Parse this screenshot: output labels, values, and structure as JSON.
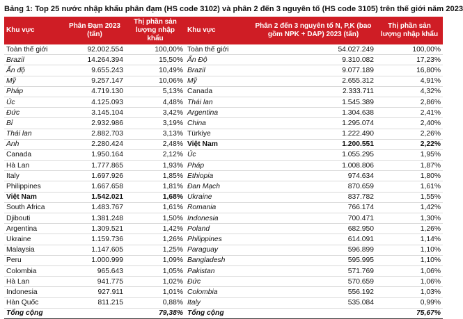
{
  "title": "Bảng 1: Top 25 nước nhập khẩu phân đạm (HS code 3102) và phân 2 đến 3 nguyên tố (HS code 3105) trên thế giới năm 2023",
  "headers": {
    "region1": "Khu vực",
    "val1": "Phân Đạm 2023 (tấn)",
    "share1": "Thị phần sản lượng nhập khẩu",
    "region2": "Khu vực",
    "val2": "Phân 2 đến 3 nguyên tố N, P,K (bao gồm NPK + DAP) 2023 (tấn)",
    "share2": "Thị phần sản lượng nhập khẩu"
  },
  "rows": [
    {
      "r1": "Toàn thế giới",
      "v1": "92.002.554",
      "s1": "100,00%",
      "r2": "Toàn thế giới",
      "v2": "54.027.249",
      "s2": "100,00%",
      "i1": false,
      "i2": false,
      "b1": false,
      "b2": false
    },
    {
      "r1": "Brazil",
      "v1": "14.264.394",
      "s1": "15,50%",
      "r2": "Ấn Độ",
      "v2": "9.310.082",
      "s2": "17,23%",
      "i1": true,
      "i2": true,
      "b1": false,
      "b2": false
    },
    {
      "r1": "Ấn độ",
      "v1": "9.655.243",
      "s1": "10,49%",
      "r2": "Brazil",
      "v2": "9.077.189",
      "s2": "16,80%",
      "i1": true,
      "i2": true,
      "b1": false,
      "b2": false
    },
    {
      "r1": "Mỹ",
      "v1": "9.257.147",
      "s1": "10,06%",
      "r2": "Mỹ",
      "v2": "2.655.312",
      "s2": "4,91%",
      "i1": true,
      "i2": true,
      "b1": false,
      "b2": false
    },
    {
      "r1": "Pháp",
      "v1": "4.719.130",
      "s1": "5,13%",
      "r2": "Canada",
      "v2": "2.333.711",
      "s2": "4,32%",
      "i1": true,
      "i2": false,
      "b1": false,
      "b2": false
    },
    {
      "r1": "Úc",
      "v1": "4.125.093",
      "s1": "4,48%",
      "r2": "Thái lan",
      "v2": "1.545.389",
      "s2": "2,86%",
      "i1": true,
      "i2": true,
      "b1": false,
      "b2": false
    },
    {
      "r1": "Đức",
      "v1": "3.145.104",
      "s1": "3,42%",
      "r2": "Argentina",
      "v2": "1.304.638",
      "s2": "2,41%",
      "i1": true,
      "i2": true,
      "b1": false,
      "b2": false
    },
    {
      "r1": "Bỉ",
      "v1": "2.932.986",
      "s1": "3,19%",
      "r2": "China",
      "v2": "1.295.074",
      "s2": "2,40%",
      "i1": true,
      "i2": true,
      "b1": false,
      "b2": false
    },
    {
      "r1": "Thái lan",
      "v1": "2.882.703",
      "s1": "3,13%",
      "r2": "Türkiye",
      "v2": "1.222.490",
      "s2": "2,26%",
      "i1": true,
      "i2": false,
      "b1": false,
      "b2": false
    },
    {
      "r1": "Anh",
      "v1": "2.280.424",
      "s1": "2,48%",
      "r2": "Việt Nam",
      "v2": "1.200.551",
      "s2": "2,22%",
      "i1": true,
      "i2": false,
      "b1": false,
      "b2": true
    },
    {
      "r1": "Canada",
      "v1": "1.950.164",
      "s1": "2,12%",
      "r2": "Úc",
      "v2": "1.055.295",
      "s2": "1,95%",
      "i1": false,
      "i2": true,
      "b1": false,
      "b2": false
    },
    {
      "r1": "Hà Lan",
      "v1": "1.777.865",
      "s1": "1,93%",
      "r2": "Pháp",
      "v2": "1.008.806",
      "s2": "1,87%",
      "i1": false,
      "i2": true,
      "b1": false,
      "b2": false
    },
    {
      "r1": "Italy",
      "v1": "1.697.926",
      "s1": "1,85%",
      "r2": "Ethiopia",
      "v2": "974.634",
      "s2": "1,80%",
      "i1": false,
      "i2": true,
      "b1": false,
      "b2": false
    },
    {
      "r1": "Philippines",
      "v1": "1.667.658",
      "s1": "1,81%",
      "r2": "Đan Mạch",
      "v2": "870.659",
      "s2": "1,61%",
      "i1": false,
      "i2": true,
      "b1": false,
      "b2": false
    },
    {
      "r1": "Việt Nam",
      "v1": "1.542.021",
      "s1": "1,68%",
      "r2": "Ukraine",
      "v2": "837.782",
      "s2": "1,55%",
      "i1": false,
      "i2": true,
      "b1": true,
      "b2": false
    },
    {
      "r1": "South Africa",
      "v1": "1.483.767",
      "s1": "1,61%",
      "r2": "Romania",
      "v2": "766.174",
      "s2": "1,42%",
      "i1": false,
      "i2": true,
      "b1": false,
      "b2": false
    },
    {
      "r1": "Djibouti",
      "v1": "1.381.248",
      "s1": "1,50%",
      "r2": "Indonesia",
      "v2": "700.471",
      "s2": "1,30%",
      "i1": false,
      "i2": true,
      "b1": false,
      "b2": false
    },
    {
      "r1": "Argentina",
      "v1": "1.309.521",
      "s1": "1,42%",
      "r2": "Poland",
      "v2": "682.950",
      "s2": "1,26%",
      "i1": false,
      "i2": true,
      "b1": false,
      "b2": false
    },
    {
      "r1": "Ukraine",
      "v1": "1.159.736",
      "s1": "1,26%",
      "r2": "Philippines",
      "v2": "614.091",
      "s2": "1,14%",
      "i1": false,
      "i2": true,
      "b1": false,
      "b2": false
    },
    {
      "r1": "Malaysia",
      "v1": "1.147.605",
      "s1": "1,25%",
      "r2": "Paraguay",
      "v2": "596.899",
      "s2": "1,10%",
      "i1": false,
      "i2": true,
      "b1": false,
      "b2": false
    },
    {
      "r1": "Peru",
      "v1": "1.000.999",
      "s1": "1,09%",
      "r2": "Bangladesh",
      "v2": "595.995",
      "s2": "1,10%",
      "i1": false,
      "i2": true,
      "b1": false,
      "b2": false
    },
    {
      "r1": "Colombia",
      "v1": "965.643",
      "s1": "1,05%",
      "r2": "Pakistan",
      "v2": "571.769",
      "s2": "1,06%",
      "i1": false,
      "i2": true,
      "b1": false,
      "b2": false
    },
    {
      "r1": "Hà Lan",
      "v1": "941.775",
      "s1": "1,02%",
      "r2": "Đức",
      "v2": "570.659",
      "s2": "1,06%",
      "i1": false,
      "i2": true,
      "b1": false,
      "b2": false
    },
    {
      "r1": "Indonesia",
      "v1": "927.911",
      "s1": "1,01%",
      "r2": "Colombia",
      "v2": "556.192",
      "s2": "1,03%",
      "i1": false,
      "i2": true,
      "b1": false,
      "b2": false
    },
    {
      "r1": "Hàn Quốc",
      "v1": "811.215",
      "s1": "0,88%",
      "r2": "Italy",
      "v2": "535.084",
      "s2": "0,99%",
      "i1": false,
      "i2": true,
      "b1": false,
      "b2": false
    }
  ],
  "total": {
    "r1": "Tổng cộng",
    "v1": "",
    "s1": "79,38%",
    "r2": "Tổng cộng",
    "v2": "",
    "s2": "75,67%"
  },
  "colors": {
    "header_bg": "#cf1d25",
    "header_text": "#ffffff"
  }
}
